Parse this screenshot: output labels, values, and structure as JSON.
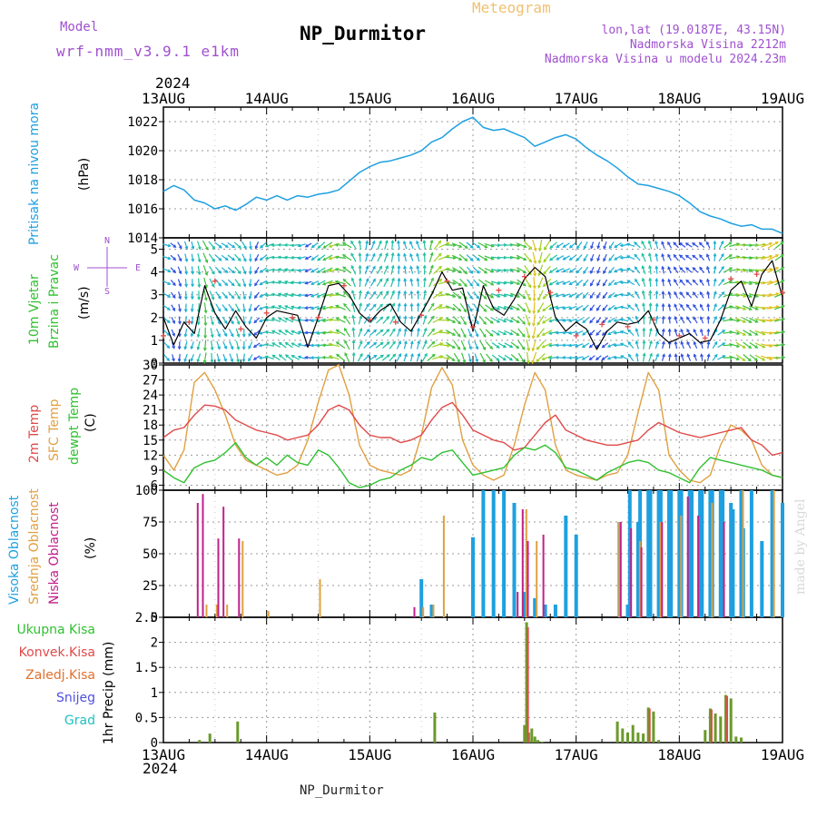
{
  "header": {
    "title": "NP_Durmitor",
    "meteogram": "Meteogram",
    "model_label": "Model",
    "model_name": "wrf-nmm_v3.9.1 e1km",
    "lonlat": "lon,lat (19.0187E, 43.15N)",
    "altitude": "Nadmorska Visina 2212m",
    "model_altitude": "Nadmorska Visina u modelu 2024.23m",
    "year_top": "2024",
    "year_bottom": "2024",
    "footer": "NP_Durmitor",
    "credit": "made by Angel"
  },
  "colors": {
    "pressure": "#1ea0e0",
    "temp2m": "#e04a4a",
    "sfc": "#e0a040",
    "dewpt": "#30c030",
    "high_cloud": "#1ea0e0",
    "mid_cloud": "#e0a040",
    "low_cloud": "#c0208a",
    "ukupna": "#30c030",
    "konvek": "#e04a4a",
    "zaledj": "#e07030",
    "snijeg": "#5050e0",
    "grad": "#20c0c0",
    "model_text": "#a050d0"
  },
  "chart_data": [
    {
      "type": "line",
      "panel": "pressure",
      "ylabel_main": "Pritisak na nivou mora",
      "ylabel_unit": "(hPa)",
      "ylim": [
        1014,
        1023
      ],
      "y_ticks": [
        "1014",
        "1016",
        "1018",
        "1020",
        "1022"
      ],
      "x_ticks": [
        "13AUG",
        "14AUG",
        "15AUG",
        "16AUG",
        "17AUG",
        "18AUG",
        "19AUG"
      ],
      "x_days": [
        0,
        6
      ],
      "grid": true,
      "series": [
        {
          "x": [
            0,
            0.1,
            0.2,
            0.3,
            0.4,
            0.5,
            0.6,
            0.7,
            0.8,
            0.9,
            1.0,
            1.1,
            1.2,
            1.3,
            1.4,
            1.5,
            1.6,
            1.7,
            1.8,
            1.9,
            2.0,
            2.1,
            2.2,
            2.3,
            2.4,
            2.5,
            2.6,
            2.7,
            2.8,
            2.9,
            3.0,
            3.1,
            3.2,
            3.3,
            3.4,
            3.5,
            3.6,
            3.7,
            3.8,
            3.9,
            4.0,
            4.1,
            4.2,
            4.3,
            4.4,
            4.5,
            4.6,
            4.7,
            4.8,
            4.9,
            5.0,
            5.1,
            5.2,
            5.3,
            5.4,
            5.5,
            5.6,
            5.7,
            5.8,
            5.9,
            6.0
          ],
          "y": [
            1017.2,
            1017.6,
            1017.3,
            1016.6,
            1016.4,
            1016.0,
            1016.2,
            1015.9,
            1016.3,
            1016.8,
            1016.6,
            1016.9,
            1016.6,
            1016.9,
            1016.8,
            1017.0,
            1017.1,
            1017.3,
            1017.9,
            1018.5,
            1018.9,
            1019.2,
            1019.3,
            1019.5,
            1019.7,
            1020.0,
            1020.6,
            1020.9,
            1021.5,
            1022.0,
            1022.3,
            1021.6,
            1021.4,
            1021.5,
            1021.2,
            1020.9,
            1020.3,
            1020.6,
            1020.9,
            1021.1,
            1020.8,
            1020.2,
            1019.7,
            1019.3,
            1018.8,
            1018.2,
            1017.7,
            1017.6,
            1017.4,
            1017.2,
            1016.9,
            1016.4,
            1015.8,
            1015.5,
            1015.3,
            1015.0,
            1014.8,
            1014.9,
            1014.6,
            1014.6,
            1014.3
          ]
        }
      ]
    },
    {
      "type": "line",
      "panel": "wind",
      "ylabel_main": "10m Vjetar",
      "ylabel_sub": "Brzina i Pravac",
      "ylabel_unit": "(m/s)",
      "compass": {
        "n": "N",
        "s": "S",
        "w": "W",
        "e": "E"
      },
      "ylim": [
        0,
        5.5
      ],
      "y_ticks": [
        "0",
        "1",
        "2",
        "3",
        "4",
        "5"
      ],
      "grid": true,
      "series": [
        {
          "name": "speed",
          "x": [
            0,
            0.1,
            0.2,
            0.3,
            0.4,
            0.5,
            0.6,
            0.7,
            0.8,
            0.9,
            1.0,
            1.1,
            1.2,
            1.3,
            1.4,
            1.5,
            1.6,
            1.7,
            1.8,
            1.9,
            2.0,
            2.1,
            2.2,
            2.3,
            2.4,
            2.5,
            2.6,
            2.7,
            2.8,
            2.9,
            3.0,
            3.1,
            3.2,
            3.3,
            3.4,
            3.5,
            3.6,
            3.7,
            3.8,
            3.9,
            4.0,
            4.1,
            4.2,
            4.3,
            4.4,
            4.5,
            4.6,
            4.7,
            4.8,
            4.9,
            5.0,
            5.1,
            5.2,
            5.3,
            5.4,
            5.5,
            5.6,
            5.7,
            5.8,
            5.9,
            6.0
          ],
          "y": [
            2.0,
            0.8,
            1.8,
            1.3,
            3.4,
            2.2,
            1.5,
            2.3,
            1.6,
            1.1,
            2.0,
            2.3,
            2.2,
            2.1,
            0.7,
            2.0,
            3.4,
            3.5,
            3.0,
            2.2,
            1.8,
            2.3,
            2.6,
            1.8,
            1.4,
            2.2,
            3.0,
            4.0,
            3.2,
            3.3,
            1.4,
            3.4,
            2.4,
            2.1,
            2.8,
            3.7,
            4.2,
            3.8,
            2.0,
            1.4,
            1.8,
            1.5,
            0.6,
            1.4,
            1.8,
            1.7,
            1.8,
            2.3,
            1.3,
            0.9,
            1.1,
            1.3,
            0.9,
            1.0,
            1.9,
            3.2,
            3.6,
            2.5,
            3.9,
            4.5,
            2.9
          ]
        },
        {
          "name": "gust",
          "x": [
            0,
            0.25,
            0.5,
            0.75,
            1.0,
            1.25,
            1.5,
            1.75,
            2.0,
            2.25,
            2.5,
            2.75,
            3.0,
            3.25,
            3.5,
            3.75,
            4.0,
            4.25,
            4.5,
            4.75,
            5.0,
            5.25,
            5.5,
            5.75,
            6.0
          ],
          "y": [
            1.2,
            1.8,
            3.6,
            1.5,
            2.2,
            2.0,
            2.0,
            3.4,
            1.9,
            1.8,
            2.1,
            3.6,
            1.6,
            3.2,
            3.8,
            3.1,
            1.2,
            1.7,
            1.6,
            1.9,
            1.2,
            1.1,
            3.7,
            3.9,
            3.1
          ]
        }
      ]
    },
    {
      "type": "line",
      "panel": "temperature",
      "ylabel_lines": [
        "2m Temp",
        "SFC Temp",
        "dewpt Temp"
      ],
      "ylabel_unit": "(C)",
      "ylim": [
        5,
        30
      ],
      "y_ticks": [
        "6",
        "9",
        "12",
        "15",
        "18",
        "21",
        "24",
        "27",
        "30"
      ],
      "grid": true,
      "series": [
        {
          "name": "2m Temp",
          "x": [
            0,
            0.1,
            0.2,
            0.3,
            0.4,
            0.5,
            0.6,
            0.7,
            0.8,
            0.9,
            1.0,
            1.1,
            1.2,
            1.3,
            1.4,
            1.5,
            1.6,
            1.7,
            1.8,
            1.9,
            2.0,
            2.1,
            2.2,
            2.3,
            2.4,
            2.5,
            2.6,
            2.7,
            2.8,
            2.9,
            3.0,
            3.1,
            3.2,
            3.3,
            3.4,
            3.5,
            3.6,
            3.7,
            3.8,
            3.9,
            4.0,
            4.1,
            4.2,
            4.3,
            4.4,
            4.5,
            4.6,
            4.7,
            4.8,
            4.9,
            5.0,
            5.1,
            5.2,
            5.3,
            5.4,
            5.5,
            5.6,
            5.7,
            5.8,
            5.9,
            6.0
          ],
          "y": [
            15.5,
            17.0,
            17.5,
            20.0,
            22.0,
            21.8,
            21.0,
            19.0,
            18.0,
            17.0,
            16.5,
            16.0,
            15.0,
            15.5,
            16.0,
            18.0,
            21.0,
            22.0,
            21.0,
            18.0,
            16.0,
            15.5,
            15.5,
            14.5,
            15.0,
            16.0,
            19.0,
            21.5,
            22.5,
            20.0,
            17.0,
            16.0,
            15.0,
            14.5,
            13.0,
            13.5,
            16.0,
            18.5,
            20.0,
            17.0,
            16.0,
            15.0,
            14.5,
            14.0,
            14.0,
            14.5,
            15.0,
            17.0,
            18.5,
            17.5,
            16.5,
            16.0,
            15.5,
            16.0,
            16.5,
            17.0,
            17.5,
            15.0,
            14.0,
            12.0,
            12.5
          ]
        },
        {
          "name": "SFC Temp",
          "x": [
            0,
            0.1,
            0.2,
            0.3,
            0.4,
            0.5,
            0.6,
            0.7,
            0.8,
            0.9,
            1.0,
            1.1,
            1.2,
            1.3,
            1.4,
            1.5,
            1.6,
            1.7,
            1.8,
            1.9,
            2.0,
            2.1,
            2.2,
            2.3,
            2.4,
            2.5,
            2.6,
            2.7,
            2.8,
            2.9,
            3.0,
            3.1,
            3.2,
            3.3,
            3.4,
            3.5,
            3.6,
            3.7,
            3.8,
            3.9,
            4.0,
            4.1,
            4.2,
            4.3,
            4.4,
            4.5,
            4.6,
            4.7,
            4.8,
            4.9,
            5.0,
            5.1,
            5.2,
            5.3,
            5.4,
            5.5,
            5.6,
            5.7,
            5.8,
            5.9,
            6.0
          ],
          "y": [
            12.0,
            9.0,
            13.0,
            26.5,
            28.5,
            25.0,
            20.0,
            14.0,
            11.0,
            10.0,
            9.0,
            8.0,
            8.5,
            10.0,
            15.0,
            22.5,
            29.0,
            30.0,
            24.0,
            14.0,
            10.0,
            9.0,
            8.5,
            8.0,
            9.0,
            16.0,
            25.5,
            29.5,
            26.0,
            15.0,
            10.0,
            8.0,
            7.0,
            8.0,
            14.0,
            22.0,
            28.5,
            25.0,
            14.0,
            9.0,
            8.0,
            7.5,
            7.0,
            8.0,
            8.5,
            12.0,
            20.5,
            28.5,
            25.0,
            12.0,
            9.0,
            7.0,
            6.5,
            8.0,
            14.0,
            18.0,
            17.0,
            15.0,
            10.0,
            8.0,
            7.5
          ]
        },
        {
          "name": "dewpt Temp",
          "x": [
            0,
            0.1,
            0.2,
            0.3,
            0.4,
            0.5,
            0.6,
            0.7,
            0.8,
            0.9,
            1.0,
            1.1,
            1.2,
            1.3,
            1.4,
            1.5,
            1.6,
            1.7,
            1.8,
            1.9,
            2.0,
            2.1,
            2.2,
            2.3,
            2.4,
            2.5,
            2.6,
            2.7,
            2.8,
            2.9,
            3.0,
            3.1,
            3.2,
            3.3,
            3.4,
            3.5,
            3.6,
            3.7,
            3.8,
            3.9,
            4.0,
            4.1,
            4.2,
            4.3,
            4.4,
            4.5,
            4.6,
            4.7,
            4.8,
            4.9,
            5.0,
            5.1,
            5.2,
            5.3,
            5.4,
            5.5,
            5.6,
            5.7,
            5.8,
            5.9,
            6.0
          ],
          "y": [
            9.0,
            7.5,
            6.5,
            9.5,
            10.5,
            11.0,
            12.5,
            14.5,
            11.5,
            10.0,
            11.5,
            10.0,
            12.0,
            10.5,
            10.0,
            13.0,
            12.0,
            9.5,
            6.5,
            5.5,
            6.0,
            7.0,
            7.5,
            9.0,
            10.0,
            11.5,
            11.0,
            12.5,
            13.0,
            10.5,
            8.0,
            8.5,
            9.0,
            9.5,
            12.0,
            13.5,
            13.0,
            14.0,
            12.5,
            9.5,
            9.0,
            8.0,
            7.0,
            8.5,
            9.5,
            10.5,
            11.0,
            10.5,
            9.0,
            8.5,
            7.5,
            6.5,
            9.5,
            11.5,
            11.0,
            10.5,
            10.0,
            9.5,
            9.0,
            8.0,
            7.5
          ]
        }
      ]
    },
    {
      "type": "bar",
      "panel": "clouds",
      "ylabel_lines": [
        "Visoka Oblacnost",
        "Srednja Oblacnost",
        "Niska Oblacnost"
      ],
      "ylabel_unit": "(%)",
      "ylim": [
        0,
        100
      ],
      "y_ticks": [
        "0",
        "25",
        "50",
        "75",
        "100"
      ],
      "grid": true,
      "series": [
        {
          "name": "Visoka Oblacnost",
          "x": [
            2.5,
            2.6,
            3.0,
            3.1,
            3.2,
            3.3,
            3.4,
            3.5,
            3.6,
            3.7,
            3.8,
            3.9,
            4.0,
            4.5,
            4.6,
            4.7,
            4.8,
            4.9,
            5.0,
            5.1,
            5.2,
            5.3,
            5.4,
            5.5,
            5.6,
            5.7,
            5.8,
            5.9,
            6.0,
            4.42,
            4.52,
            4.62,
            4.72,
            4.82,
            4.92,
            5.02,
            5.12,
            5.22,
            5.32,
            5.42,
            5.52,
            5.62
          ],
          "values": [
            30,
            10,
            63,
            100,
            100,
            100,
            90,
            20,
            15,
            10,
            10,
            80,
            65,
            10,
            75,
            100,
            100,
            100,
            100,
            100,
            100,
            100,
            100,
            90,
            100,
            100,
            60,
            100,
            90,
            75,
            100,
            100,
            100,
            100,
            100,
            100,
            100,
            100,
            100,
            100,
            85,
            70
          ]
        },
        {
          "name": "Srednja Oblacnost",
          "x": [
            0.4,
            0.5,
            0.6,
            0.75,
            1.0,
            1.5,
            2.5,
            2.6,
            2.7,
            3.5,
            3.6,
            4.4,
            4.6,
            4.8,
            5.0,
            5.3,
            5.6,
            5.9
          ],
          "values": [
            10,
            10,
            10,
            60,
            5,
            30,
            8,
            10,
            80,
            85,
            60,
            75,
            60,
            75,
            80,
            90,
            100,
            100
          ]
        },
        {
          "name": "Niska Oblacnost",
          "x": [
            0.35,
            0.4,
            0.55,
            0.6,
            0.75,
            2.45,
            3.45,
            3.5,
            3.55,
            3.7,
            4.45,
            4.55,
            4.65,
            4.85,
            5.1,
            5.2,
            5.45
          ],
          "values": [
            90,
            97,
            62,
            87,
            62,
            8,
            20,
            85,
            60,
            65,
            75,
            70,
            55,
            75,
            95,
            80,
            75
          ]
        }
      ]
    },
    {
      "type": "bar",
      "panel": "precip",
      "ylabel_lines": [
        "Ukupna Kisa",
        "Konvek.Kisa",
        "Zaledj.Kisa",
        "Snijeg",
        "Grad"
      ],
      "ylabel_unit": "1hr Precip (mm)",
      "ylim": [
        0,
        2.5
      ],
      "y_ticks": [
        "0",
        "0.5",
        "1",
        "1.5",
        "2",
        "2.5"
      ],
      "grid": true,
      "series": [
        {
          "name": "Ukupna Kisa",
          "x": [
            0.35,
            0.45,
            0.72,
            2.63,
            3.5,
            3.52,
            3.54,
            3.57,
            3.6,
            3.63,
            3.67,
            4.4,
            4.45,
            4.5,
            4.55,
            4.6,
            4.65,
            4.7,
            4.75,
            4.8,
            5.25,
            5.3,
            5.35,
            5.4,
            5.45,
            5.5,
            5.55,
            5.6
          ],
          "values": [
            0.05,
            0.18,
            0.42,
            0.6,
            0.35,
            2.4,
            0.2,
            0.28,
            0.12,
            0.05,
            0.02,
            0.42,
            0.28,
            0.2,
            0.35,
            0.2,
            0.18,
            0.7,
            0.62,
            0.05,
            0.25,
            0.68,
            0.58,
            0.52,
            0.95,
            0.88,
            0.12,
            0.1
          ]
        },
        {
          "name": "Konvek.Kisa",
          "x": [
            3.52,
            4.7,
            5.3,
            5.45
          ],
          "values": [
            2.3,
            0.68,
            0.66,
            0.93
          ]
        }
      ]
    }
  ]
}
